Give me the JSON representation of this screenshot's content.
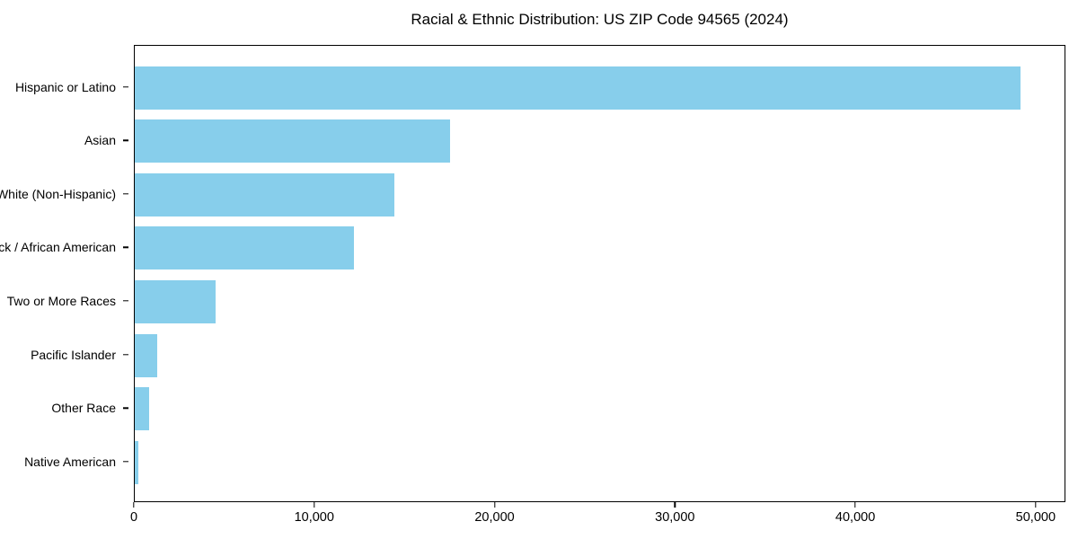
{
  "chart_data": {
    "type": "bar",
    "orientation": "horizontal",
    "title": "Racial & Ethnic Distribution: US ZIP Code 94565 (2024)",
    "categories": [
      "Hispanic or Latino",
      "Asian",
      "White (Non-Hispanic)",
      "Black / African American",
      "Two or More Races",
      "Pacific Islander",
      "Other Race",
      "Native American"
    ],
    "values": [
      49200,
      17500,
      14400,
      12200,
      4500,
      1250,
      800,
      200
    ],
    "xlabel": "",
    "ylabel": "",
    "xlim": [
      0,
      51650
    ],
    "xticks": [
      {
        "value": 0,
        "label": "0"
      },
      {
        "value": 10000,
        "label": "10,000"
      },
      {
        "value": 20000,
        "label": "20,000"
      },
      {
        "value": 30000,
        "label": "30,000"
      },
      {
        "value": 40000,
        "label": "40,000"
      },
      {
        "value": 50000,
        "label": "50,000"
      }
    ],
    "bar_color": "#87CEEB",
    "background": "#ffffff",
    "frame_color": "#000000",
    "grid": false,
    "legend": null
  }
}
